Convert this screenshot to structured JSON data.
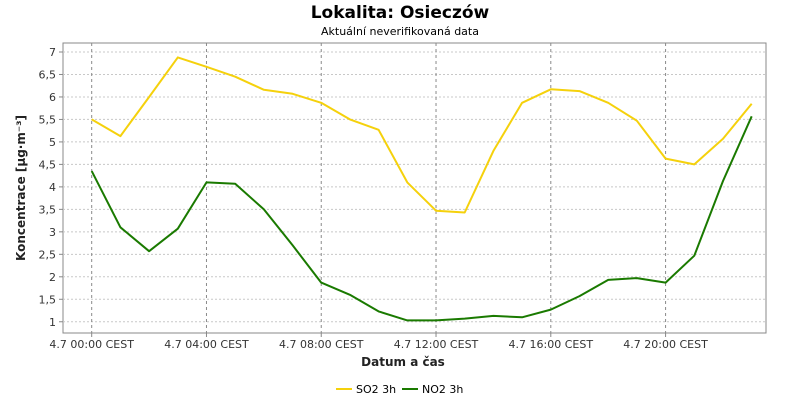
{
  "chart_data": {
    "type": "line",
    "title": "Lokalita: Osieczów",
    "subtitle": "Aktuální neverifikovaná data",
    "xlabel": "Datum a čas",
    "ylabel": "Koncentrace [µg·m⁻³]",
    "x_tick_labels": [
      "4.7 00:00 CEST",
      "4.7 04:00 CEST",
      "4.7 08:00 CEST",
      "4.7 12:00 CEST",
      "4.7 16:00 CEST",
      "4.7 20:00 CEST"
    ],
    "x_tick_hours": [
      0,
      4,
      8,
      12,
      16,
      20
    ],
    "xlim_hours": [
      -1,
      23.5
    ],
    "y_tick_labels": [
      "1",
      "1,5",
      "2",
      "2,5",
      "3",
      "3,5",
      "4",
      "4,5",
      "5",
      "5,5",
      "6",
      "6,5",
      "7"
    ],
    "y_ticks": [
      1,
      1.5,
      2,
      2.5,
      3,
      3.5,
      4,
      4.5,
      5,
      5.5,
      6,
      6.5,
      7
    ],
    "ylim": [
      0.75,
      7.2
    ],
    "grid": true,
    "legend_position": "bottom-center",
    "x_hours": [
      0,
      1,
      2,
      3,
      4,
      5,
      6,
      7,
      8,
      9,
      10,
      11,
      12,
      13,
      14,
      15,
      16,
      17,
      18,
      19,
      20,
      21,
      22,
      23
    ],
    "series": [
      {
        "name": "SO2 3h",
        "color": "#f5d10c",
        "values": [
          5.5,
          5.13,
          6.0,
          6.88,
          6.67,
          6.45,
          6.16,
          6.07,
          5.87,
          5.5,
          5.27,
          4.1,
          3.47,
          3.43,
          4.8,
          5.87,
          6.17,
          6.13,
          5.87,
          5.47,
          4.63,
          4.5,
          5.07,
          5.85
        ]
      },
      {
        "name": "NO2 3h",
        "color": "#1a7a00",
        "values": [
          4.35,
          3.1,
          2.57,
          3.07,
          4.1,
          4.07,
          3.5,
          2.7,
          1.87,
          1.6,
          1.23,
          1.03,
          1.03,
          1.07,
          1.13,
          1.1,
          1.27,
          1.57,
          1.93,
          1.97,
          1.87,
          2.47,
          4.13,
          5.57
        ]
      }
    ]
  }
}
